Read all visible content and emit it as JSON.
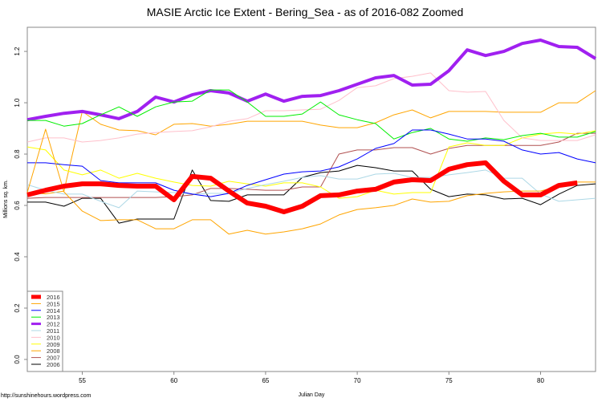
{
  "chart_data": {
    "type": "line",
    "title": "MASIE Arctic Ice Extent - Bering_Sea - as of 2016-082 Zoomed",
    "xlabel": "Julian Day",
    "ylabel": "Millions sq. km.",
    "footer": "http://sunshinehours.wordpress.com",
    "xlim": [
      52,
      83
    ],
    "ylim": [
      -0.047,
      1.294
    ],
    "x_ticks": [
      "55",
      "60",
      "65",
      "70",
      "75",
      "80"
    ],
    "y_ticks": [
      "0.0",
      "0.2",
      "0.4",
      "0.6",
      "0.8",
      "1.0",
      "1.2"
    ],
    "grid": false,
    "legend_position": "bottom-left",
    "x_start": 52,
    "series": [
      {
        "name": "2016",
        "color": "#ff0000",
        "thick": true,
        "values": [
          0.641,
          0.659,
          0.675,
          0.684,
          0.684,
          0.678,
          0.675,
          0.675,
          0.622,
          0.713,
          0.706,
          0.656,
          0.609,
          0.597,
          0.575,
          0.597,
          0.638,
          0.641,
          0.656,
          0.663,
          0.691,
          0.7,
          0.697,
          0.741,
          0.759,
          0.766,
          0.694,
          0.641,
          0.641,
          0.678,
          0.688
        ]
      },
      {
        "name": "2015",
        "color": "#ffa500",
        "values": [
          0.65,
          0.897,
          0.653,
          0.578,
          0.541,
          0.544,
          0.544,
          0.509,
          0.509,
          0.544,
          0.544,
          0.488,
          0.503,
          0.488,
          0.497,
          0.509,
          0.528,
          0.563,
          0.584,
          0.591,
          0.6,
          0.625,
          0.613,
          0.616,
          0.638,
          0.647,
          0.653,
          0.656,
          0.656,
          0.675,
          0.691,
          0.691
        ]
      },
      {
        "name": "2014",
        "color": "#0000ff",
        "values": [
          0.766,
          0.766,
          0.759,
          0.753,
          0.697,
          0.688,
          0.688,
          0.688,
          0.659,
          0.644,
          0.634,
          0.647,
          0.678,
          0.7,
          0.722,
          0.731,
          0.734,
          0.75,
          0.781,
          0.822,
          0.841,
          0.894,
          0.894,
          0.878,
          0.859,
          0.859,
          0.85,
          0.816,
          0.8,
          0.806,
          0.781,
          0.766
        ]
      },
      {
        "name": "2013",
        "color": "#00ee00",
        "values": [
          0.931,
          0.931,
          0.909,
          0.919,
          0.953,
          0.984,
          0.947,
          0.984,
          1.003,
          1.006,
          1.05,
          1.05,
          1.003,
          0.947,
          0.947,
          0.956,
          1.003,
          0.953,
          0.934,
          0.919,
          0.859,
          0.884,
          0.9,
          0.859,
          0.85,
          0.863,
          0.856,
          0.872,
          0.881,
          0.866,
          0.866,
          0.888
        ]
      },
      {
        "name": "2012",
        "color": "#a020f0",
        "thick": true,
        "values": [
          0.934,
          0.947,
          0.959,
          0.966,
          0.953,
          0.938,
          0.966,
          1.022,
          1.003,
          1.031,
          1.047,
          1.038,
          1.006,
          1.034,
          1.006,
          1.025,
          1.028,
          1.047,
          1.072,
          1.097,
          1.106,
          1.069,
          1.072,
          1.125,
          1.206,
          1.184,
          1.2,
          1.231,
          1.244,
          1.219,
          1.216,
          1.172
        ]
      },
      {
        "name": "2011",
        "color": "#add8e6",
        "values": [
          0.681,
          0.659,
          0.644,
          0.644,
          0.616,
          0.591,
          0.656,
          0.653,
          0.65,
          0.644,
          0.647,
          0.647,
          0.666,
          0.681,
          0.694,
          0.709,
          0.716,
          0.703,
          0.703,
          0.722,
          0.725,
          0.709,
          0.709,
          0.719,
          0.728,
          0.738,
          0.706,
          0.706,
          0.644,
          0.616,
          0.622,
          0.628
        ]
      },
      {
        "name": "2010",
        "color": "#ffc0cb",
        "values": [
          0.847,
          0.863,
          0.863,
          0.847,
          0.853,
          0.863,
          0.878,
          0.884,
          0.888,
          0.891,
          0.906,
          0.928,
          0.938,
          0.969,
          0.969,
          0.972,
          0.975,
          1.009,
          1.059,
          1.066,
          1.094,
          1.103,
          1.116,
          1.047,
          1.041,
          1.044,
          0.931,
          0.863,
          0.853,
          0.853,
          0.853,
          0.875
        ]
      },
      {
        "name": "2009",
        "color": "#ffff00",
        "values": [
          0.828,
          0.816,
          0.738,
          0.719,
          0.738,
          0.706,
          0.725,
          0.706,
          0.691,
          0.678,
          0.675,
          0.694,
          0.684,
          0.675,
          0.688,
          0.688,
          0.672,
          0.628,
          0.634,
          0.659,
          0.644,
          0.65,
          0.65,
          0.828,
          0.844,
          0.834,
          0.834,
          0.863,
          0.878,
          0.884,
          0.878,
          0.891
        ]
      },
      {
        "name": "2008",
        "color": "#ffa500",
        "values": [
          0.65,
          0.645,
          0.656,
          0.966,
          0.916,
          0.894,
          0.891,
          0.875,
          0.916,
          0.919,
          0.909,
          0.916,
          0.928,
          0.928,
          0.928,
          0.928,
          0.913,
          0.903,
          0.903,
          0.922,
          0.953,
          0.972,
          0.941,
          0.966,
          0.966,
          0.966,
          0.963,
          0.963,
          0.963,
          1.0,
          1.0,
          1.047
        ]
      },
      {
        "name": "2007",
        "color": "#b05050",
        "values": [
          0.628,
          0.631,
          0.631,
          0.631,
          0.631,
          0.631,
          0.631,
          0.631,
          0.634,
          0.641,
          0.666,
          0.666,
          0.663,
          0.659,
          0.659,
          0.672,
          0.672,
          0.8,
          0.816,
          0.816,
          0.825,
          0.825,
          0.8,
          0.822,
          0.834,
          0.834,
          0.834,
          0.834,
          0.834,
          0.847,
          0.881,
          0.881
        ]
      },
      {
        "name": "2006",
        "color": "#000000",
        "values": [
          0.613,
          0.613,
          0.597,
          0.628,
          0.628,
          0.531,
          0.547,
          0.547,
          0.547,
          0.738,
          0.619,
          0.616,
          0.641,
          0.641,
          0.641,
          0.709,
          0.728,
          0.734,
          0.756,
          0.747,
          0.734,
          0.734,
          0.663,
          0.634,
          0.644,
          0.641,
          0.625,
          0.628,
          0.603,
          0.644,
          0.678,
          0.684
        ]
      }
    ]
  }
}
